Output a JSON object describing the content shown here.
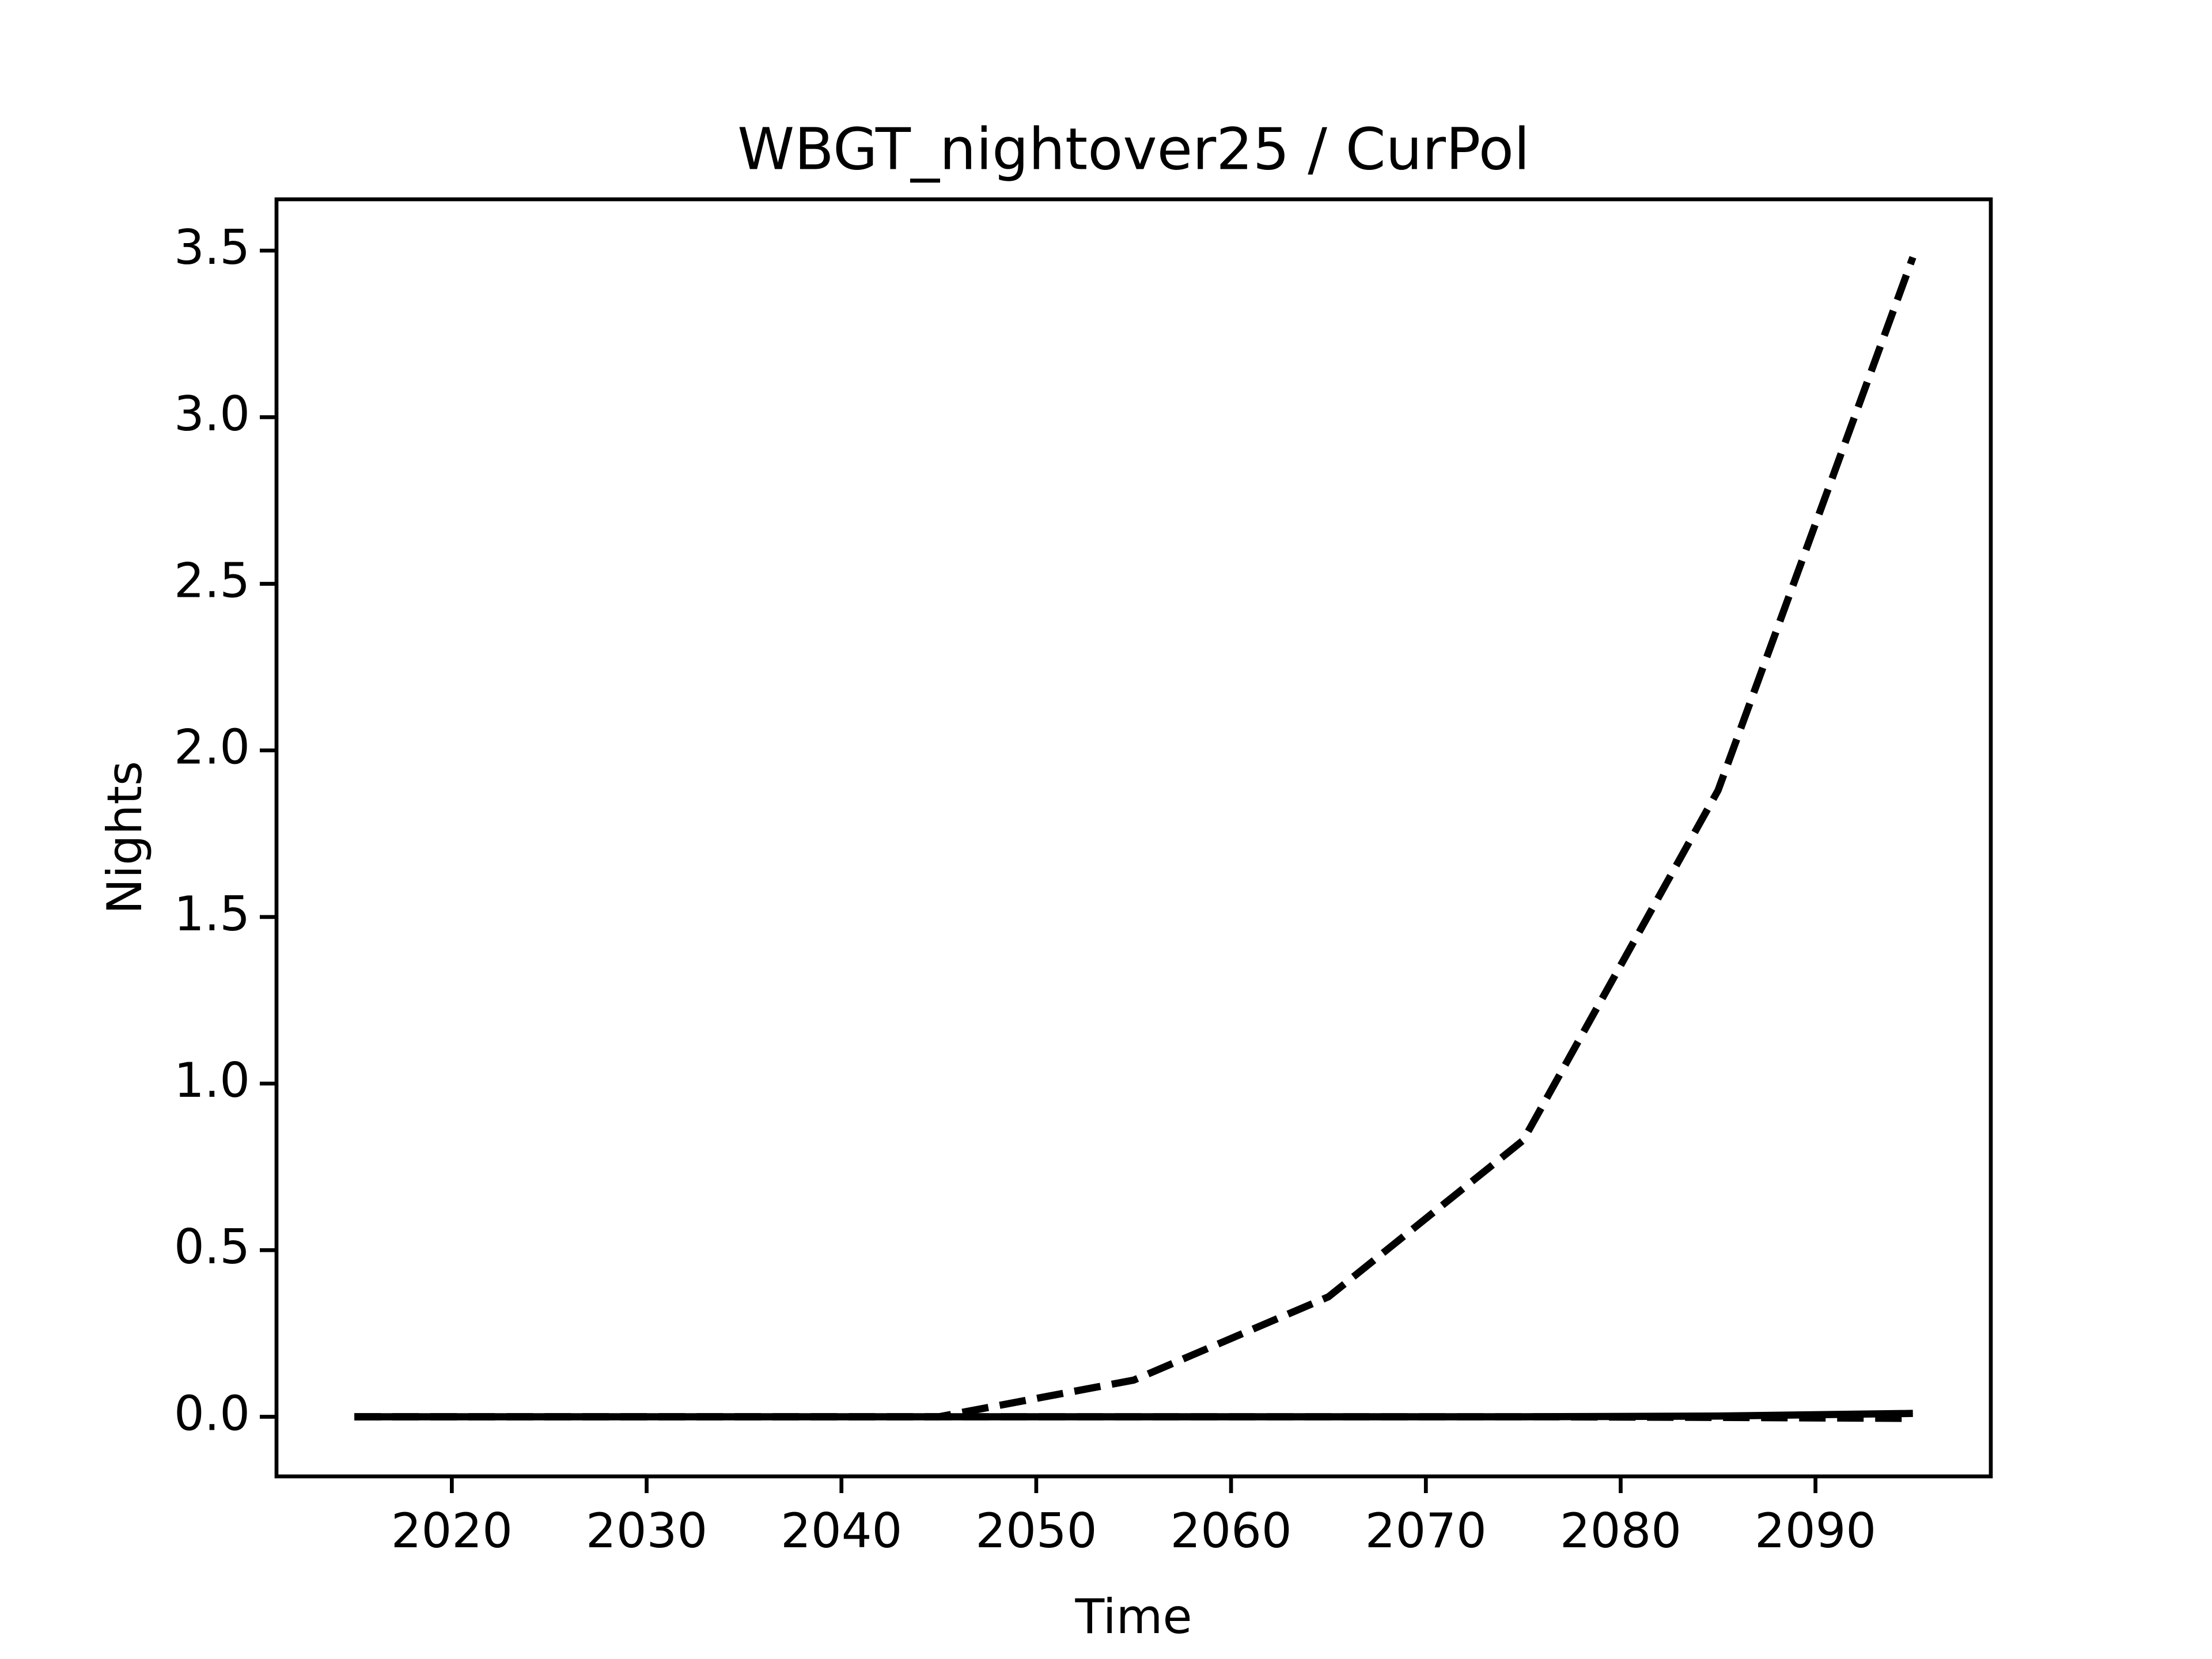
{
  "chart_data": {
    "type": "line",
    "title": "WBGT_nightover25 / CurPol",
    "xlabel": "Time",
    "ylabel": "Nights",
    "x": [
      2015,
      2025,
      2035,
      2045,
      2055,
      2065,
      2075,
      2085,
      2095
    ],
    "series": [
      {
        "color": "#000000",
        "dash": "dashed",
        "values": [
          0,
          0,
          0,
          0,
          0.11,
          0.36,
          0.83,
          1.88,
          3.48
        ]
      },
      {
        "color": "#000000",
        "dash": "solid",
        "values": [
          0,
          0,
          0,
          0,
          0,
          0,
          0,
          0.002,
          0.01
        ]
      },
      {
        "color": "#000000",
        "dash": "dashed",
        "values": [
          0,
          0,
          0,
          0,
          0,
          0,
          0,
          -0.002,
          -0.005
        ]
      }
    ],
    "xlim": [
      2011,
      2099
    ],
    "xticks": [
      2020,
      2030,
      2040,
      2050,
      2060,
      2070,
      2080,
      2090
    ],
    "ylim": [
      -0.179,
      3.654
    ],
    "yticks": [
      {
        "value": 0,
        "label": "0.0"
      },
      0.5,
      {
        "value": 1,
        "label": "1.0"
      },
      1.5,
      {
        "value": 2,
        "label": "2.0"
      },
      2.5,
      {
        "value": 3,
        "label": "3.0"
      },
      3.5
    ],
    "grid": false
  }
}
